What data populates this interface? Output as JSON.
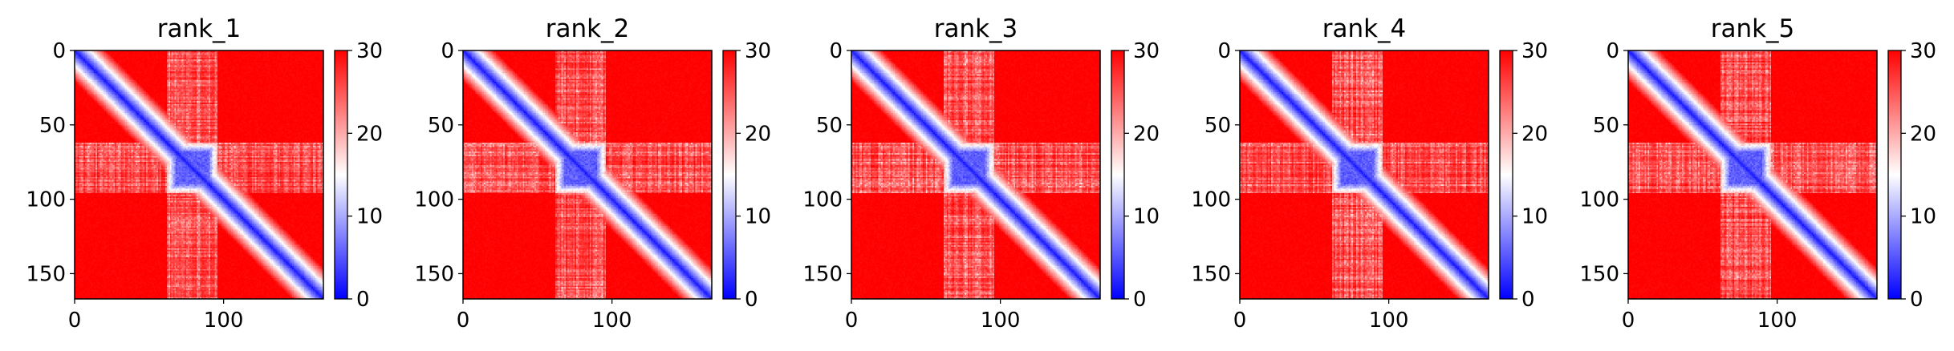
{
  "chart_data": [
    {
      "type": "heatmap",
      "title": "rank_1",
      "matrix_size": 167,
      "x_ticks": [
        0,
        100
      ],
      "y_ticks": [
        0,
        50,
        100,
        150
      ],
      "colorbar": {
        "ticks": [
          0,
          10,
          20,
          30
        ],
        "range": [
          0,
          30
        ],
        "cmap": "bwr"
      },
      "structure": {
        "diagonal_band": true,
        "domain": [
          62,
          95
        ],
        "bands": [
          62,
          95
        ]
      }
    },
    {
      "type": "heatmap",
      "title": "rank_2",
      "matrix_size": 167,
      "x_ticks": [
        0,
        100
      ],
      "y_ticks": [
        0,
        50,
        100,
        150
      ],
      "colorbar": {
        "ticks": [
          0,
          10,
          20,
          30
        ],
        "range": [
          0,
          30
        ],
        "cmap": "bwr"
      },
      "structure": {
        "diagonal_band": true,
        "domain": [
          62,
          95
        ],
        "bands": [
          62,
          95
        ]
      }
    },
    {
      "type": "heatmap",
      "title": "rank_3",
      "matrix_size": 167,
      "x_ticks": [
        0,
        100
      ],
      "y_ticks": [
        0,
        50,
        100,
        150
      ],
      "colorbar": {
        "ticks": [
          0,
          10,
          20,
          30
        ],
        "range": [
          0,
          30
        ],
        "cmap": "bwr"
      },
      "structure": {
        "diagonal_band": true,
        "domain": [
          62,
          95
        ],
        "bands": [
          62,
          95
        ]
      }
    },
    {
      "type": "heatmap",
      "title": "rank_4",
      "matrix_size": 167,
      "x_ticks": [
        0,
        100
      ],
      "y_ticks": [
        0,
        50,
        100,
        150
      ],
      "colorbar": {
        "ticks": [
          0,
          10,
          20,
          30
        ],
        "range": [
          0,
          30
        ],
        "cmap": "bwr"
      },
      "structure": {
        "diagonal_band": true,
        "domain": [
          62,
          95
        ],
        "bands": [
          62,
          95
        ]
      }
    },
    {
      "type": "heatmap",
      "title": "rank_5",
      "matrix_size": 167,
      "x_ticks": [
        0,
        100
      ],
      "y_ticks": [
        0,
        50,
        100,
        150
      ],
      "colorbar": {
        "ticks": [
          0,
          10,
          20,
          30
        ],
        "range": [
          0,
          30
        ],
        "cmap": "bwr"
      },
      "structure": {
        "diagonal_band": true,
        "domain": [
          62,
          95
        ],
        "bands": [
          62,
          95
        ]
      }
    }
  ]
}
